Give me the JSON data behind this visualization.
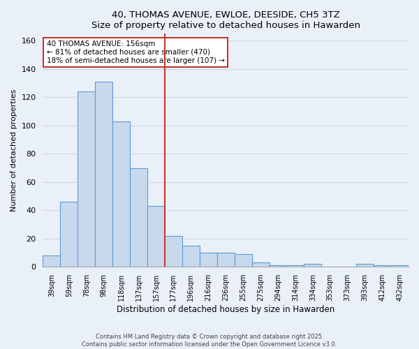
{
  "title": "40, THOMAS AVENUE, EWLOE, DEESIDE, CH5 3TZ",
  "subtitle": "Size of property relative to detached houses in Hawarden",
  "xlabel": "Distribution of detached houses by size in Hawarden",
  "ylabel": "Number of detached properties",
  "bar_labels": [
    "39sqm",
    "59sqm",
    "78sqm",
    "98sqm",
    "118sqm",
    "137sqm",
    "157sqm",
    "177sqm",
    "196sqm",
    "216sqm",
    "236sqm",
    "255sqm",
    "275sqm",
    "294sqm",
    "314sqm",
    "334sqm",
    "353sqm",
    "373sqm",
    "393sqm",
    "412sqm",
    "432sqm"
  ],
  "bar_values": [
    8,
    46,
    124,
    131,
    103,
    70,
    43,
    22,
    15,
    10,
    10,
    9,
    3,
    1,
    1,
    2,
    0,
    0,
    2,
    1,
    1
  ],
  "bar_color": "#c8d9ee",
  "bar_edge_color": "#5b9bd5",
  "vline_bar_index": 6,
  "vline_color": "#c0392b",
  "annotation_title": "40 THOMAS AVENUE: 156sqm",
  "annotation_line1": "← 81% of detached houses are smaller (470)",
  "annotation_line2": "18% of semi-detached houses are larger (107) →",
  "annotation_box_color": "#ffffff",
  "annotation_box_edge_color": "#c0392b",
  "ylim": [
    0,
    165
  ],
  "yticks": [
    0,
    20,
    40,
    60,
    80,
    100,
    120,
    140,
    160
  ],
  "bg_color": "#eaf0f8",
  "grid_color": "#d0d8e8",
  "footer_line1": "Contains HM Land Registry data © Crown copyright and database right 2025.",
  "footer_line2": "Contains public sector information licensed under the Open Government Licence v3.0."
}
